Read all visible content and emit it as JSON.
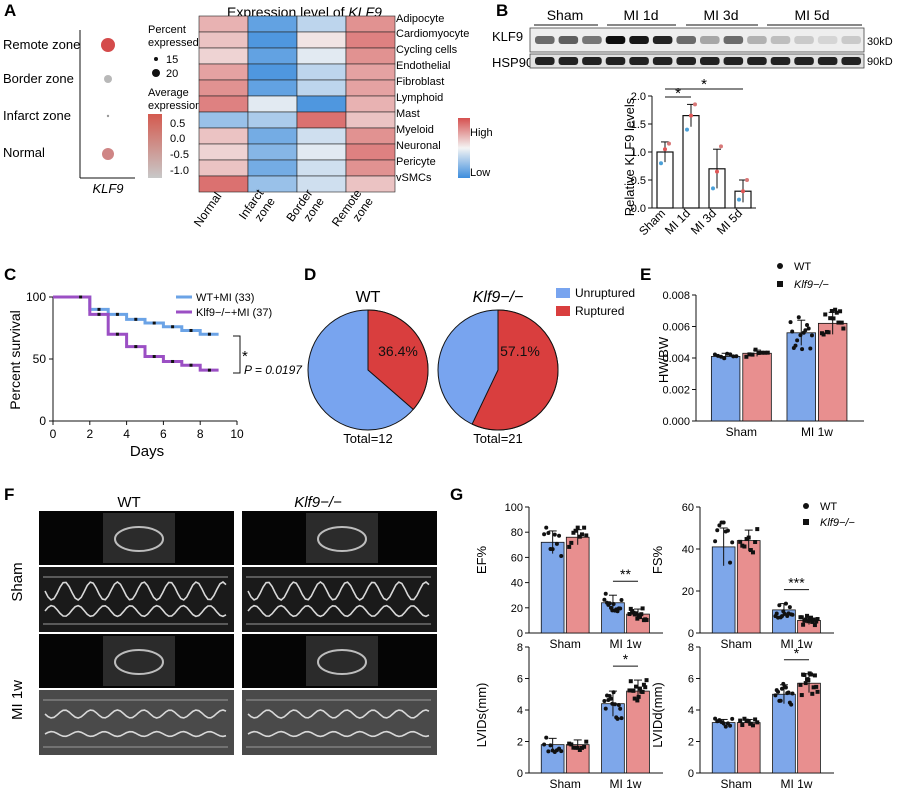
{
  "colors": {
    "wt": "#7ea7ea",
    "ko": "#e88f8f",
    "wt_line": "#6ba3e6",
    "ko_line": "#9b4fc4",
    "pie_blue": "#78a4ef",
    "pie_red": "#d93e3e",
    "dot_red": "#d44b4b",
    "dot_pink": "#cf8585",
    "dot_gray": "#b8b8b8",
    "heat_high": "#d5504f",
    "heat_low": "#3d8ddd"
  },
  "panels": {
    "A": {
      "label": "A",
      "dot": {
        "zones": [
          "Remote zone",
          "Border zone",
          "Infarct zone",
          "Normal"
        ],
        "gene": "KLF9",
        "pct_title": "Percent expressed",
        "pct_levels": [
          "15",
          "20"
        ],
        "avg_title": "Average expression",
        "avg_ticks": [
          "0.5",
          "0.0",
          "-0.5",
          "-1.0"
        ]
      },
      "heat": {
        "title_prefix": "Expression level of ",
        "title_gene": "KLF9",
        "cells": [
          "Adipocyte",
          "Cardiomyocyte",
          "Cycling cells",
          "Endothelial",
          "Fibroblast",
          "Lymphoid",
          "Mast",
          "Myeloid",
          "Neuronal",
          "Pericyte",
          "vSMCs"
        ],
        "zones": [
          "Normal",
          "Infarct zone",
          "Border zone",
          "Remote zone"
        ],
        "legend_high": "High",
        "legend_low": "Low"
      }
    },
    "B": {
      "label": "B",
      "groups": [
        "Sham",
        "MI 1d",
        "MI 3d",
        "MI 5d"
      ],
      "blot_rows": [
        "KLF9",
        "HSP90"
      ],
      "kd": [
        "30kD",
        "90kD"
      ],
      "ylabel": "Relative KLF9 levels",
      "yticks": [
        "0.0",
        "0.5",
        "1.0",
        "1.5",
        "2.0"
      ],
      "stars": [
        "*",
        "*"
      ]
    },
    "C": {
      "label": "C",
      "ylabel": "Percent survival",
      "xlabel": "Days",
      "yticks": [
        "0",
        "50",
        "100"
      ],
      "xticks": [
        "0",
        "2",
        "4",
        "6",
        "8",
        "10"
      ],
      "legend": [
        "WT+MI (33)",
        "Klf9−/−+MI (37)"
      ],
      "star": "*",
      "pvalue": "P = 0.0197"
    },
    "D": {
      "label": "D",
      "titles": [
        "WT",
        "Klf9−/−"
      ],
      "pct": [
        "36.4%",
        "57.1%"
      ],
      "totals": [
        "Total=12",
        "Total=21"
      ],
      "legend": [
        "Unruptured",
        "Ruptured"
      ]
    },
    "E": {
      "label": "E",
      "ylabel": "HW/BW",
      "yticks": [
        "0.000",
        "0.002",
        "0.004",
        "0.006",
        "0.008"
      ],
      "groups": [
        "Sham",
        "MI 1w"
      ],
      "legend": [
        "WT",
        "Klf9−/−"
      ]
    },
    "F": {
      "label": "F",
      "cols": [
        "WT",
        "Klf9−/−"
      ],
      "rows": [
        "Sham",
        "MI 1w"
      ]
    },
    "G": {
      "label": "G",
      "groups": [
        "Sham",
        "MI 1w"
      ],
      "legend": [
        "WT",
        "Klf9−/−"
      ],
      "ylabels": [
        "EF%",
        "FS%",
        "LVIDs(mm)",
        "LVIDd(mm)"
      ],
      "yticks": [
        [
          "0",
          "20",
          "40",
          "60",
          "80",
          "100"
        ],
        [
          "0",
          "20",
          "40",
          "60"
        ],
        [
          "0",
          "2",
          "4",
          "6",
          "8"
        ],
        [
          "0",
          "2",
          "4",
          "6",
          "8"
        ]
      ],
      "stars": [
        "**",
        "***",
        "*",
        "*"
      ]
    }
  },
  "chart_data": [
    {
      "type": "scatter",
      "title": "",
      "x": [
        "KLF9"
      ],
      "categories": [
        "Remote zone",
        "Border zone",
        "Infarct zone",
        "Normal"
      ],
      "avg_expression": [
        0.8,
        -0.7,
        -1.2,
        0.2
      ],
      "percent_expressed": [
        22,
        15,
        10,
        20
      ]
    },
    {
      "type": "heatmap",
      "title": "Expression level of KLF9",
      "rows": [
        "Adipocyte",
        "Cardiomyocyte",
        "Cycling cells",
        "Endothelial",
        "Fibroblast",
        "Lymphoid",
        "Mast",
        "Myeloid",
        "Neuronal",
        "Pericyte",
        "vSMCs"
      ],
      "cols": [
        "Normal",
        "Infarct zone",
        "Border zone",
        "Remote zone"
      ],
      "values": [
        [
          0.4,
          -0.8,
          -0.3,
          0.6
        ],
        [
          0.3,
          -0.9,
          0.1,
          0.7
        ],
        [
          0.2,
          -0.8,
          -0.1,
          0.6
        ],
        [
          0.5,
          -0.9,
          -0.3,
          0.5
        ],
        [
          0.6,
          -0.8,
          -0.3,
          0.5
        ],
        [
          0.7,
          -0.1,
          -0.9,
          0.4
        ],
        [
          -0.5,
          -0.4,
          0.8,
          0.3
        ],
        [
          0.3,
          -0.7,
          -0.2,
          0.6
        ],
        [
          0.2,
          -0.6,
          -0.1,
          0.7
        ],
        [
          0.3,
          -0.7,
          -0.2,
          0.6
        ],
        [
          0.8,
          -0.5,
          -0.2,
          0.3
        ]
      ]
    },
    {
      "type": "bar",
      "title": "",
      "ylabel": "Relative KLF9 levels",
      "categories": [
        "Sham",
        "MI 1d",
        "MI 3d",
        "MI 5d"
      ],
      "values": [
        1.0,
        1.65,
        0.7,
        0.3
      ],
      "errors": [
        0.18,
        0.2,
        0.35,
        0.2
      ],
      "ylim": [
        0,
        2
      ],
      "points": [
        [
          0.8,
          1.05,
          1.15
        ],
        [
          1.4,
          1.65,
          1.85
        ],
        [
          0.35,
          0.65,
          1.1
        ],
        [
          0.15,
          0.3,
          0.5
        ]
      ]
    },
    {
      "type": "line",
      "title": "",
      "xlabel": "Days",
      "ylabel": "Percent survival",
      "xlim": [
        0,
        10
      ],
      "ylim": [
        0,
        100
      ],
      "series": [
        {
          "name": "WT+MI (33)",
          "x": [
            0,
            1,
            2,
            3,
            4,
            5,
            6,
            7,
            8,
            9
          ],
          "y": [
            100,
            100,
            90,
            86,
            82,
            79,
            76,
            73,
            70,
            70
          ]
        },
        {
          "name": "Klf9−/−+MI (37)",
          "x": [
            0,
            1,
            2,
            3,
            4,
            5,
            6,
            7,
            8,
            9
          ],
          "y": [
            100,
            100,
            86,
            70,
            60,
            52,
            48,
            45,
            41,
            41
          ]
        }
      ]
    },
    {
      "type": "pie",
      "title": "WT",
      "categories": [
        "Unruptured",
        "Ruptured"
      ],
      "values": [
        63.6,
        36.4
      ],
      "total": 12
    },
    {
      "type": "pie",
      "title": "Klf9−/−",
      "categories": [
        "Unruptured",
        "Ruptured"
      ],
      "values": [
        42.9,
        57.1
      ],
      "total": 21
    },
    {
      "type": "bar",
      "title": "",
      "ylabel": "HW/BW",
      "categories": [
        "Sham",
        "MI 1w"
      ],
      "ylim": [
        0,
        0.008
      ],
      "series": [
        {
          "name": "WT",
          "values": [
            0.0041,
            0.0056
          ],
          "errors": [
            0.0002,
            0.0008
          ]
        },
        {
          "name": "Klf9−/−",
          "values": [
            0.0043,
            0.0062
          ],
          "errors": [
            0.0002,
            0.0007
          ]
        }
      ]
    },
    {
      "type": "bar",
      "title": "",
      "ylabel": "EF%",
      "categories": [
        "Sham",
        "MI 1w"
      ],
      "ylim": [
        0,
        100
      ],
      "series": [
        {
          "name": "WT",
          "values": [
            72,
            24
          ],
          "errors": [
            9,
            6
          ]
        },
        {
          "name": "Klf9−/−",
          "values": [
            76,
            15
          ],
          "errors": [
            6,
            4
          ]
        }
      ]
    },
    {
      "type": "bar",
      "title": "",
      "ylabel": "FS%",
      "categories": [
        "Sham",
        "MI 1w"
      ],
      "ylim": [
        0,
        60
      ],
      "series": [
        {
          "name": "WT",
          "values": [
            41,
            11
          ],
          "errors": [
            9,
            3
          ]
        },
        {
          "name": "Klf9−/−",
          "values": [
            44,
            6
          ],
          "errors": [
            5,
            2
          ]
        }
      ]
    },
    {
      "type": "bar",
      "title": "",
      "ylabel": "LVIDs(mm)",
      "categories": [
        "Sham",
        "MI 1w"
      ],
      "ylim": [
        0,
        8
      ],
      "series": [
        {
          "name": "WT",
          "values": [
            1.8,
            4.4
          ],
          "errors": [
            0.4,
            0.8
          ]
        },
        {
          "name": "Klf9−/−",
          "values": [
            1.8,
            5.2
          ],
          "errors": [
            0.3,
            0.7
          ]
        }
      ]
    },
    {
      "type": "bar",
      "title": "",
      "ylabel": "LVIDd(mm)",
      "categories": [
        "Sham",
        "MI 1w"
      ],
      "ylim": [
        0,
        8
      ],
      "series": [
        {
          "name": "WT",
          "values": [
            3.2,
            5.0
          ],
          "errors": [
            0.2,
            0.6
          ]
        },
        {
          "name": "Klf9−/−",
          "values": [
            3.2,
            5.7
          ],
          "errors": [
            0.2,
            0.6
          ]
        }
      ]
    }
  ]
}
